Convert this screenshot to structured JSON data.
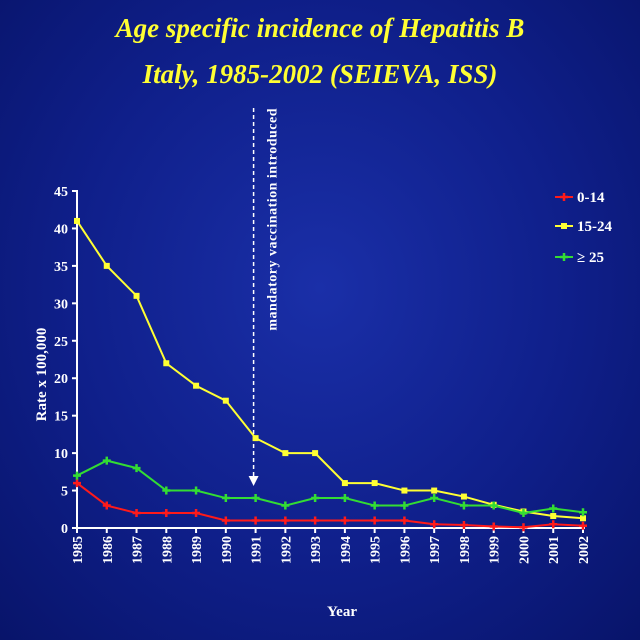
{
  "chart_data": {
    "type": "line",
    "title_line1": "Age specific incidence of Hepatitis B",
    "title_line2": "Italy, 1985-2002 (SEIEVA, ISS)",
    "xlabel": "Year",
    "ylabel": "Rate x 100,000",
    "ylim": [
      0,
      45
    ],
    "yticks": [
      0,
      5,
      10,
      15,
      20,
      25,
      30,
      35,
      40,
      45
    ],
    "x": [
      "1985",
      "1986",
      "1987",
      "1988",
      "1989",
      "1990",
      "1991",
      "1992",
      "1993",
      "1994",
      "1995",
      "1996",
      "1997",
      "1998",
      "1999",
      "2000",
      "2001",
      "2002"
    ],
    "annotation": {
      "text": "mandatory vaccination introduced",
      "x": "1991"
    },
    "legend_position": "top-right",
    "series": [
      {
        "name": "0-14",
        "color": "#ff1a1a",
        "marker": "cross",
        "values": [
          6,
          3,
          2,
          2,
          2,
          1,
          1,
          1,
          1,
          1,
          1,
          1,
          0.5,
          0.4,
          0.2,
          0.1,
          0.5,
          0.3
        ]
      },
      {
        "name": "15-24",
        "color": "#ffff33",
        "marker": "square",
        "values": [
          41,
          35,
          31,
          22,
          19,
          17,
          12,
          10,
          10,
          6,
          6,
          5,
          5,
          4.2,
          3.1,
          2.2,
          1.6,
          1.3
        ]
      },
      {
        "name": "≥ 25",
        "color": "#33dd33",
        "marker": "cross",
        "values": [
          7,
          9,
          8,
          5,
          5,
          4,
          4,
          3,
          4,
          4,
          3,
          3,
          4,
          3,
          3,
          2,
          2.6,
          2.1
        ]
      }
    ]
  }
}
